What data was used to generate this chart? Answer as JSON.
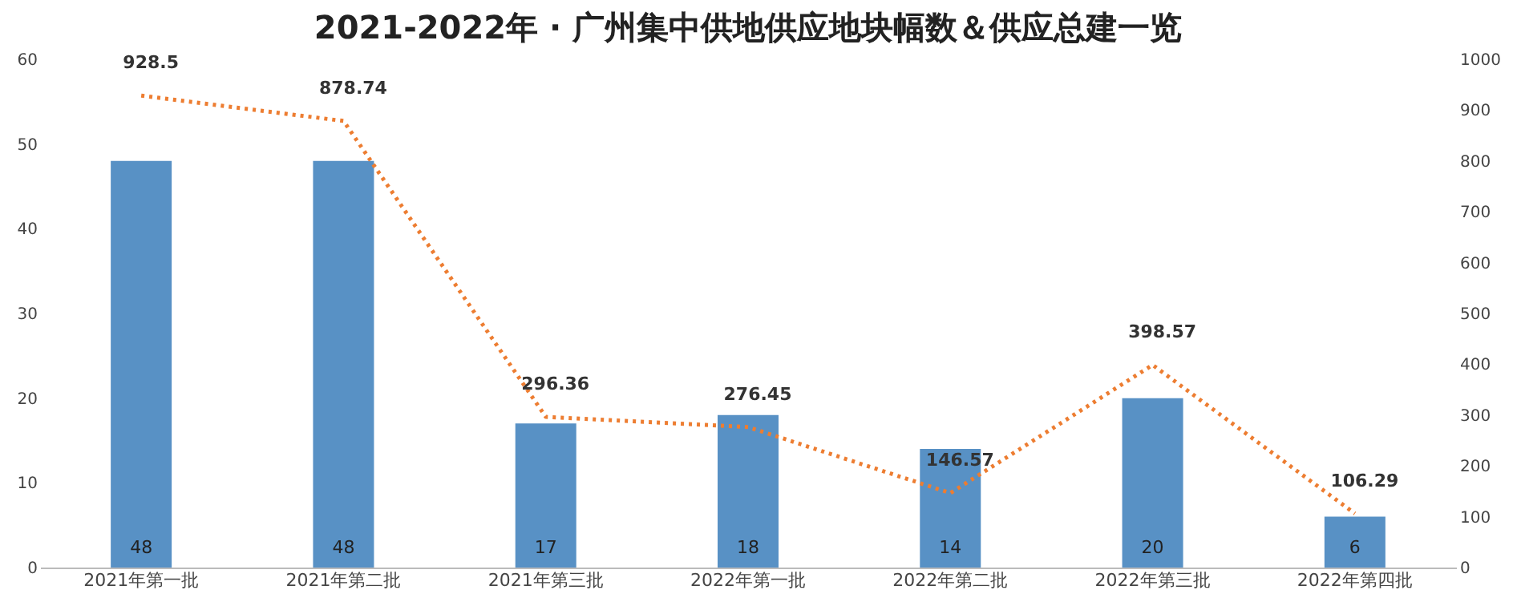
{
  "chart_data": {
    "type": "bar",
    "title": "2021-2022年 · 广州集中供地供应地块幅数＆供应总建一览",
    "categories": [
      "2021年第一批",
      "2021年第二批",
      "2021年第三批",
      "2022年第一批",
      "2022年第二批",
      "2022年第三批",
      "2022年第四批"
    ],
    "series": [
      {
        "color": "#2e75b6",
        "values": [
          48,
          48,
          17,
          18,
          14,
          20,
          6
        ]
      },
      {
        "type": "line",
        "axis": "y2",
        "color": "#ed7d31",
        "values": [
          928.5,
          878.74,
          296.36,
          276.45,
          146.57,
          398.57,
          106.29
        ]
      }
    ],
    "ylim": [
      0,
      60
    ],
    "yticks": [
      0,
      10,
      20,
      30,
      40,
      50,
      60
    ],
    "y2lim": [
      0,
      1000
    ],
    "y2ticks": [
      0,
      100,
      200,
      300,
      400,
      500,
      600,
      700,
      800,
      900,
      1000
    ],
    "data_labels": true,
    "grid": false,
    "marker": "none",
    "line_style": "dotted"
  }
}
